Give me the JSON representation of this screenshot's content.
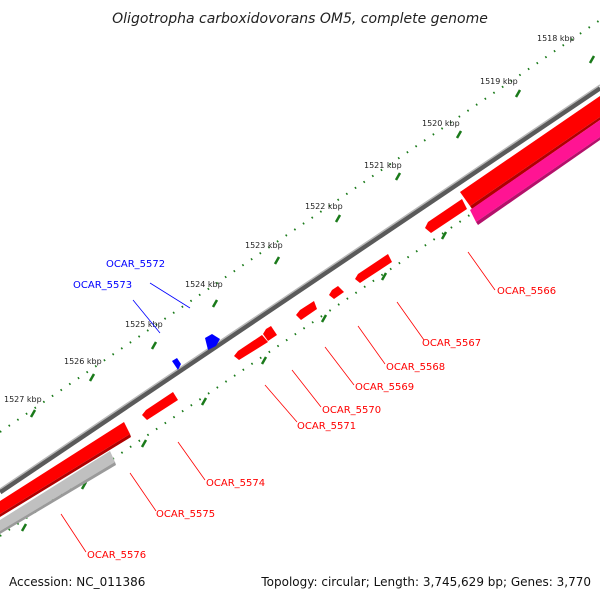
{
  "title": "Oligotropha carboxidovorans OM5, complete genome",
  "footer": {
    "accession": "Accession: NC_011386",
    "summary": "Topology: circular; Length: 3,745,629 bp; Genes: 3,770"
  },
  "ruler": {
    "labels": [
      "1518 kbp",
      "1519 kbp",
      "1520 kbp",
      "1521 kbp",
      "1522 kbp",
      "1523 kbp",
      "1524 kbp",
      "1525 kbp",
      "1526 kbp",
      "1527 kbp"
    ]
  },
  "genes": [
    {
      "label": "OCAR_5566",
      "strand": "reverse",
      "color": "#ff0000"
    },
    {
      "label": "OCAR_5567",
      "strand": "reverse",
      "color": "#ff0000"
    },
    {
      "label": "OCAR_5568",
      "strand": "reverse",
      "color": "#ff0000"
    },
    {
      "label": "OCAR_5569",
      "strand": "reverse",
      "color": "#ff0000"
    },
    {
      "label": "OCAR_5570",
      "strand": "reverse",
      "color": "#ff0000"
    },
    {
      "label": "OCAR_5571",
      "strand": "reverse",
      "color": "#ff0000"
    },
    {
      "label": "OCAR_5572",
      "strand": "forward",
      "color": "#0000ff"
    },
    {
      "label": "OCAR_5573",
      "strand": "forward",
      "color": "#0000ff"
    },
    {
      "label": "OCAR_5574",
      "strand": "reverse",
      "color": "#ff0000"
    },
    {
      "label": "OCAR_5575",
      "strand": "reverse",
      "color": "#ff0000"
    },
    {
      "label": "OCAR_5576",
      "strand": "reverse",
      "color": "#ff0000"
    }
  ],
  "colors": {
    "reverse_gene": "#ff0000",
    "forward_gene": "#0000ff",
    "rna_feature": "#ff1493",
    "other_feature": "#c0c0c0",
    "backbone": "#808080",
    "tick": "#1a7a1a"
  }
}
